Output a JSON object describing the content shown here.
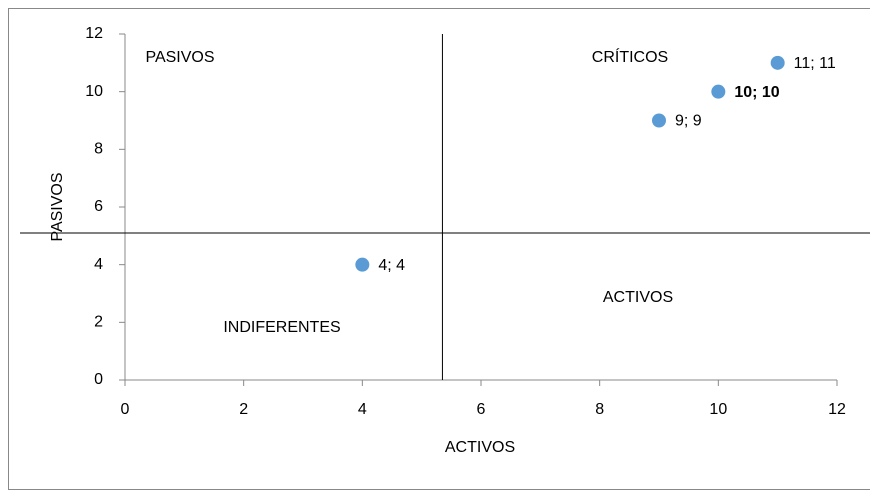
{
  "chart_data": {
    "type": "scatter",
    "x_label": "ACTIVOS",
    "y_label": "PASIVOS",
    "x": [
      4,
      9,
      10,
      11
    ],
    "values": [
      4,
      9,
      10,
      11
    ],
    "value_labels": [
      "4; 4",
      "9; 9",
      "10; 10",
      "11; 11"
    ],
    "color": "#5b9bd5",
    "xlim": [
      0,
      12
    ],
    "xticks": [
      0,
      2,
      4,
      6,
      8,
      10,
      12
    ],
    "ylim": [
      0,
      12
    ],
    "yticks": [
      0,
      2,
      4,
      6,
      8,
      10,
      12
    ],
    "quadrant_lines": {
      "x": 5.35,
      "y": 5.1
    },
    "annotations": [
      "PASIVOS",
      "CRÍTICOS",
      "INDIFERENTES",
      "ACTIVOS"
    ]
  }
}
